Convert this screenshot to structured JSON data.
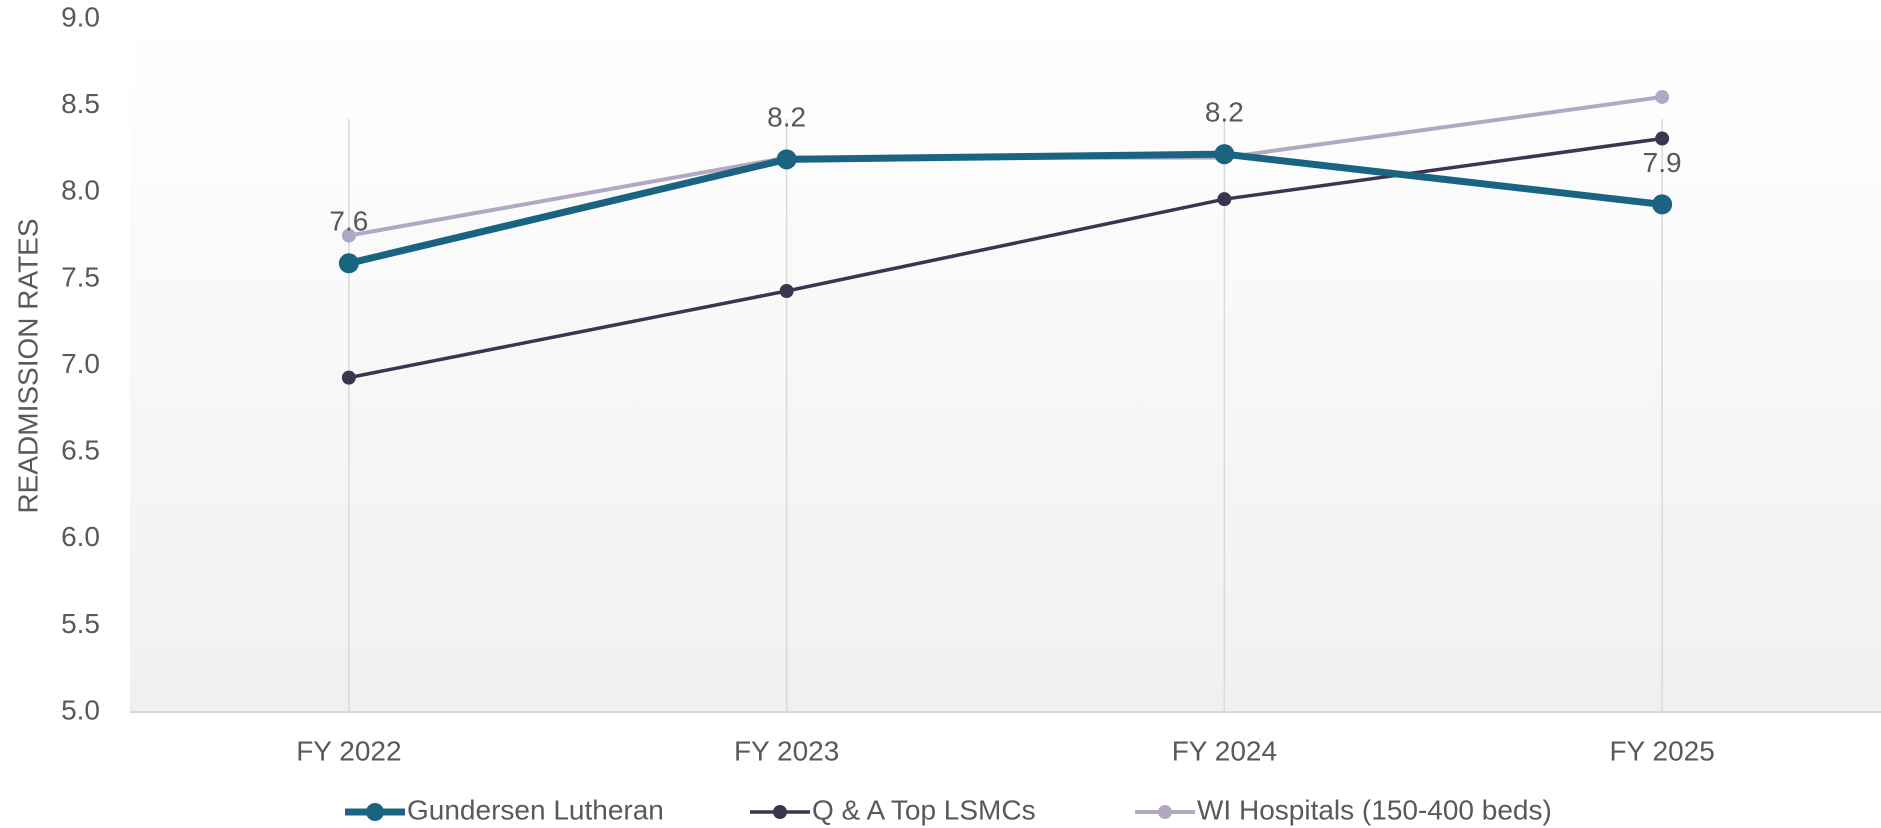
{
  "chart_data": {
    "type": "line",
    "y_label": "READMISSION RATES",
    "categories": [
      "FY 2022",
      "FY 2023",
      "FY 2024",
      "FY 2025"
    ],
    "series": [
      {
        "name": "Gundersen Lutheran",
        "color": "#1a6482",
        "values": [
          7.59,
          8.19,
          8.22,
          7.93
        ],
        "value_labels": [
          "7.6",
          "8.2",
          "8.2",
          "7.9"
        ]
      },
      {
        "name": "Q & A Top LSMCs",
        "color": "#3d3550",
        "values": [
          6.93,
          7.43,
          7.96,
          8.31
        ]
      },
      {
        "name": "WI Hospitals (150-400 beds)",
        "color": "#b3a8c4",
        "values": [
          7.75,
          8.2,
          8.2,
          8.55
        ]
      }
    ],
    "ylim": [
      5,
      9
    ],
    "yticks": [
      {
        "value": 5,
        "label": "5.0"
      },
      5.5,
      {
        "value": 6,
        "label": "6.0"
      },
      6.5,
      {
        "value": 7,
        "label": "7.0"
      },
      7.5,
      {
        "value": 8,
        "label": "8.0"
      },
      8.5,
      {
        "value": 9,
        "label": "9.0"
      }
    ],
    "grid": "x",
    "legend": "bottom"
  }
}
